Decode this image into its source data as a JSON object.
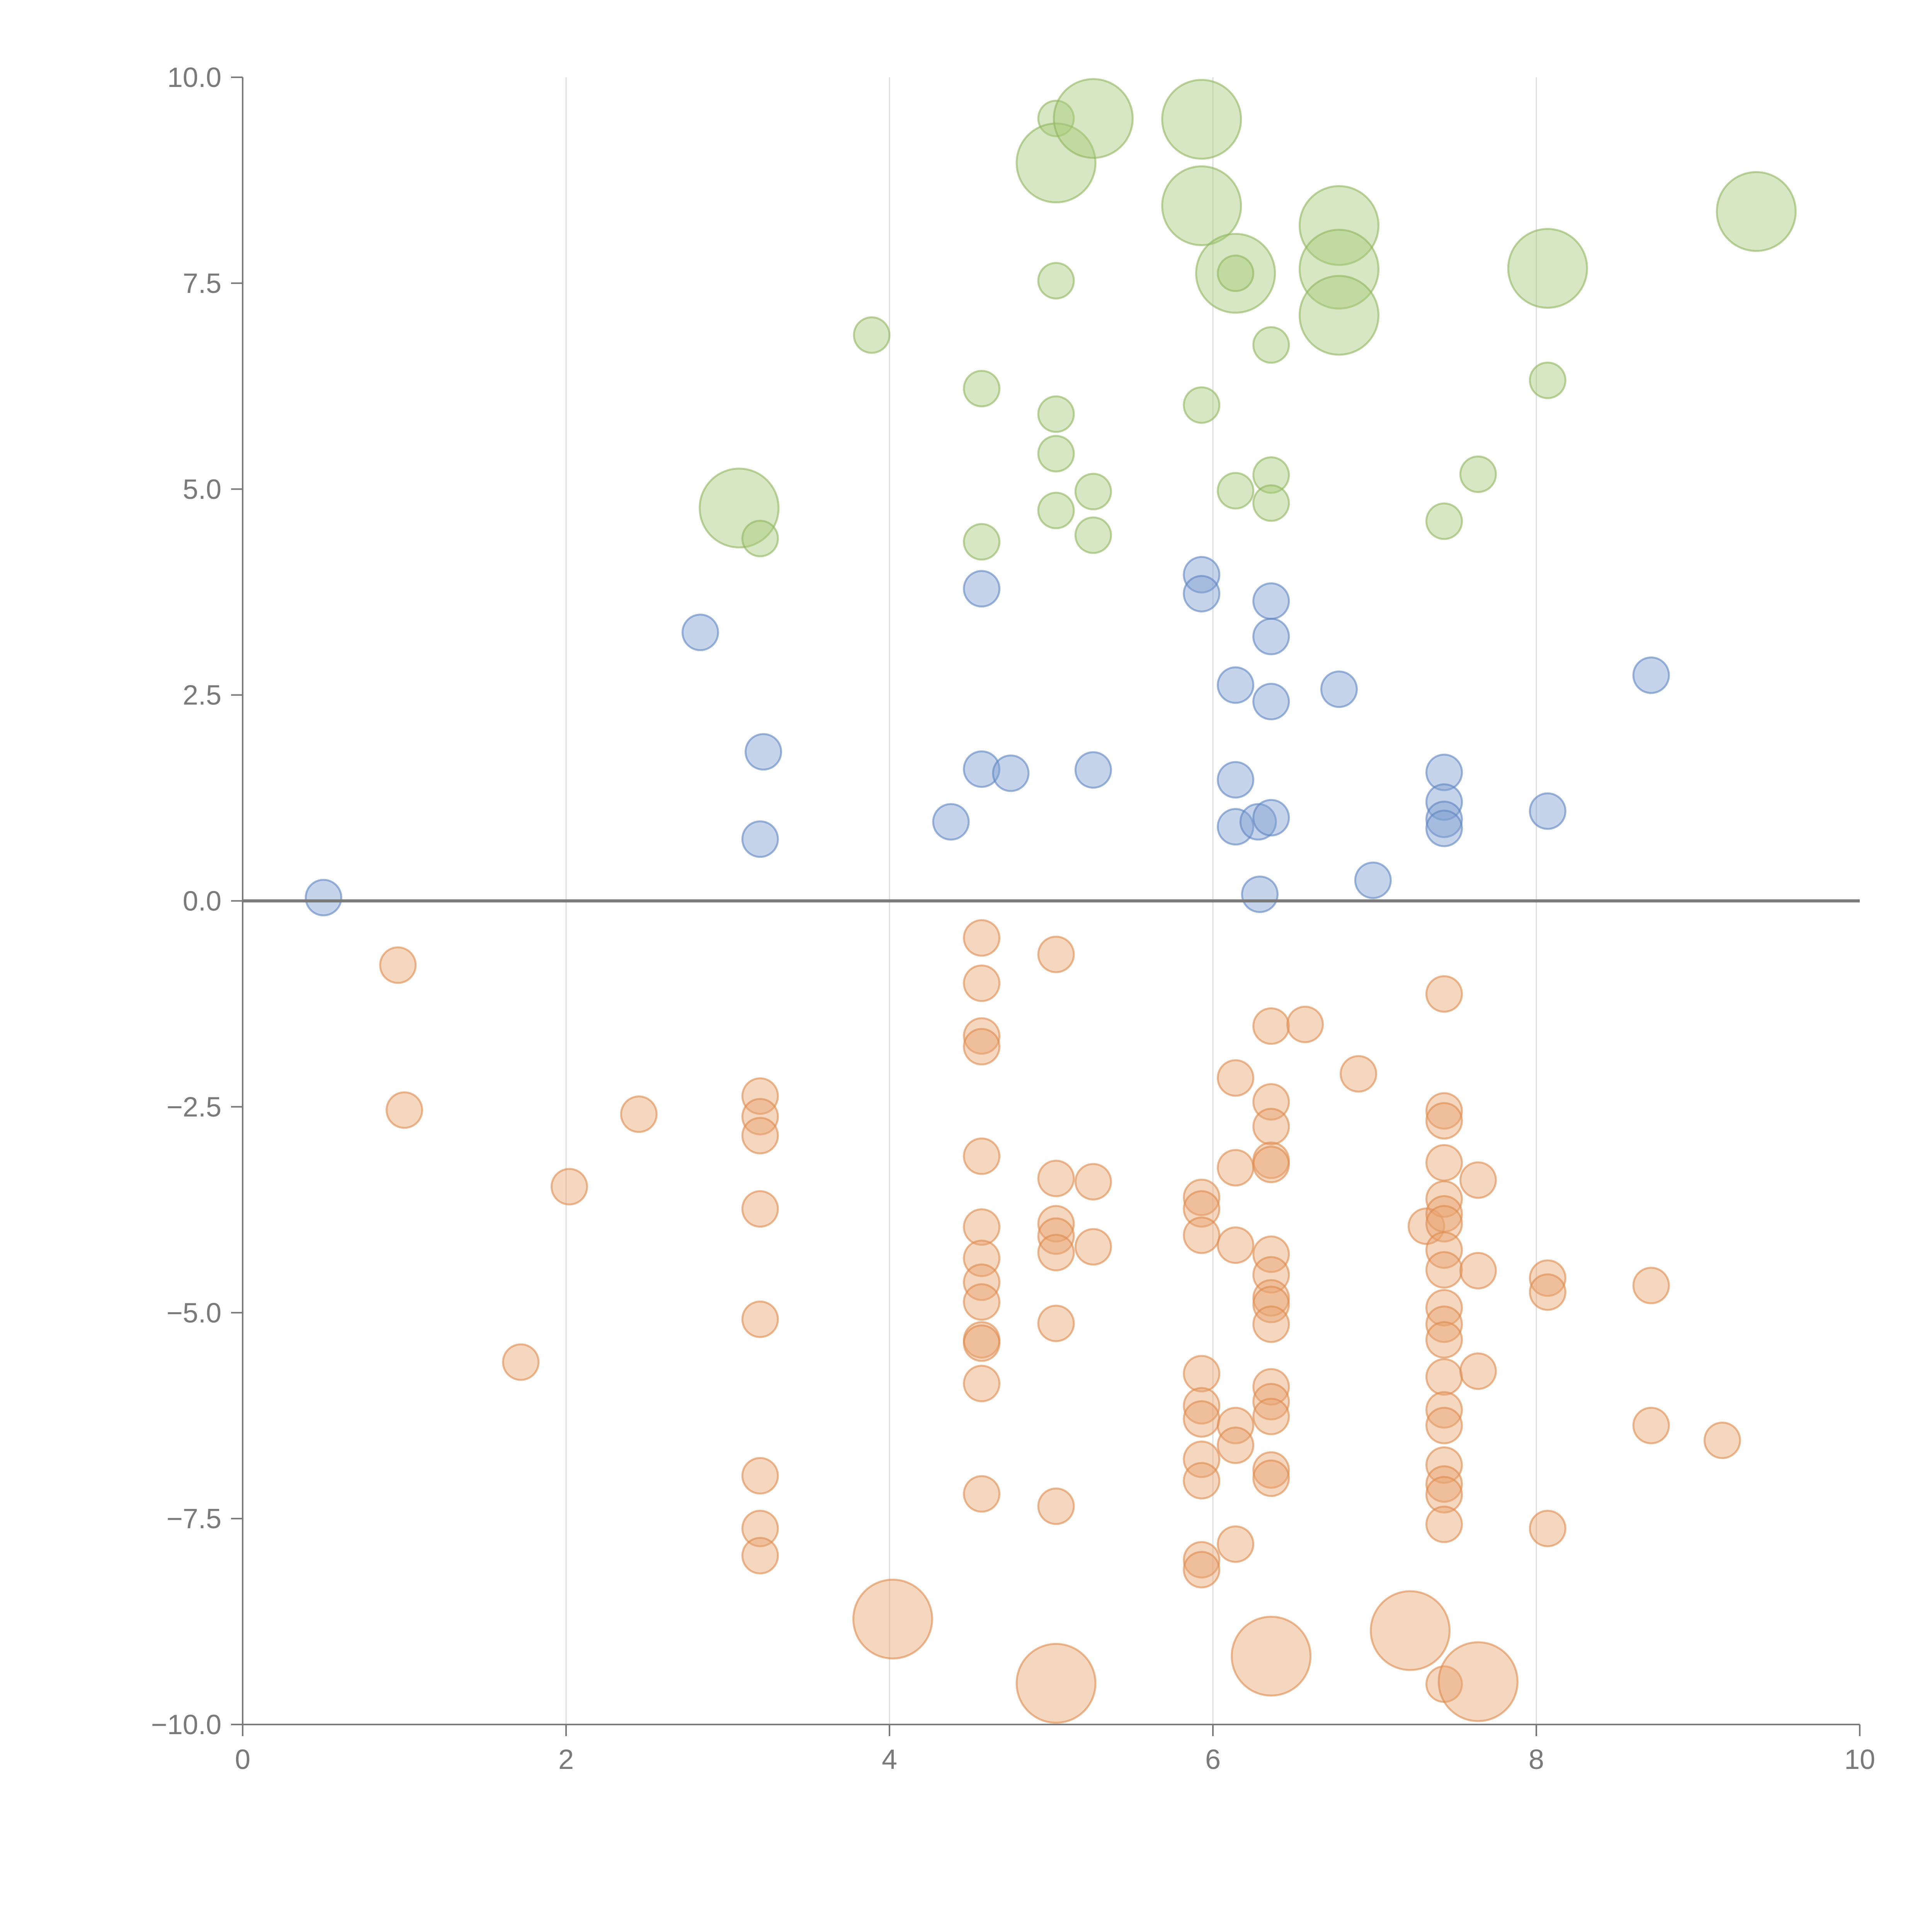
{
  "chart_data": {
    "type": "scatter",
    "title": "",
    "xlabel": "",
    "ylabel": "",
    "xlim": [
      0,
      10
    ],
    "ylim": [
      -10,
      10
    ],
    "x_ticks": [
      0,
      2,
      4,
      6,
      8,
      10
    ],
    "x_tick_labels": [
      "0",
      "2",
      "4",
      "6",
      "8",
      "10"
    ],
    "y_ticks": [
      10,
      7.5,
      5,
      2.5,
      0,
      -2.5,
      -5,
      -7.5,
      -10
    ],
    "y_tick_labels": [
      "10.0",
      "7.5",
      "5.0",
      "2.5",
      "0.0",
      "−2.5",
      "−5.0",
      "−7.5",
      "−10.0"
    ],
    "vertical_grid": true,
    "horizontal_grid": false,
    "zero_line": true,
    "legend": "none",
    "colors": {
      "green_fill": "#a9c97a",
      "green_stroke": "#8fb65f",
      "blue_fill": "#7f9fd0",
      "blue_stroke": "#5d84c2",
      "orange_fill": "#e8a470",
      "orange_stroke": "#dd8a4d",
      "axis": "#7a7a7a",
      "grid": "#dddddd"
    },
    "size_note_levels": [
      "small",
      "large"
    ],
    "series": [
      {
        "color": "green",
        "points": [
          {
            "x": 3.07,
            "y": 4.77,
            "size": "large"
          },
          {
            "x": 3.2,
            "y": 4.4,
            "size": "small"
          },
          {
            "x": 3.89,
            "y": 6.87,
            "size": "small"
          },
          {
            "x": 4.57,
            "y": 6.22,
            "size": "small"
          },
          {
            "x": 4.57,
            "y": 4.36,
            "size": "small"
          },
          {
            "x": 5.03,
            "y": 9.5,
            "size": "small"
          },
          {
            "x": 5.03,
            "y": 8.96,
            "size": "large"
          },
          {
            "x": 5.26,
            "y": 9.5,
            "size": "large"
          },
          {
            "x": 5.03,
            "y": 7.53,
            "size": "small"
          },
          {
            "x": 5.03,
            "y": 5.91,
            "size": "small"
          },
          {
            "x": 5.03,
            "y": 5.43,
            "size": "small"
          },
          {
            "x": 5.03,
            "y": 4.74,
            "size": "small"
          },
          {
            "x": 5.26,
            "y": 4.97,
            "size": "small"
          },
          {
            "x": 5.26,
            "y": 4.44,
            "size": "small"
          },
          {
            "x": 5.93,
            "y": 9.49,
            "size": "large"
          },
          {
            "x": 5.93,
            "y": 8.44,
            "size": "large"
          },
          {
            "x": 6.14,
            "y": 7.62,
            "size": "large"
          },
          {
            "x": 6.14,
            "y": 7.62,
            "size": "small"
          },
          {
            "x": 5.93,
            "y": 6.02,
            "size": "small"
          },
          {
            "x": 6.14,
            "y": 4.98,
            "size": "small"
          },
          {
            "x": 6.36,
            "y": 6.75,
            "size": "small"
          },
          {
            "x": 6.36,
            "y": 5.17,
            "size": "small"
          },
          {
            "x": 6.36,
            "y": 4.83,
            "size": "small"
          },
          {
            "x": 6.78,
            "y": 8.2,
            "size": "large"
          },
          {
            "x": 6.78,
            "y": 7.67,
            "size": "large"
          },
          {
            "x": 6.78,
            "y": 7.11,
            "size": "large"
          },
          {
            "x": 7.43,
            "y": 4.61,
            "size": "small"
          },
          {
            "x": 7.64,
            "y": 5.18,
            "size": "small"
          },
          {
            "x": 8.07,
            "y": 7.68,
            "size": "large"
          },
          {
            "x": 8.07,
            "y": 6.32,
            "size": "small"
          },
          {
            "x": 9.36,
            "y": 8.37,
            "size": "large"
          }
        ]
      },
      {
        "color": "blue",
        "points": [
          {
            "x": 0.5,
            "y": 0.04,
            "size": "small"
          },
          {
            "x": 2.83,
            "y": 3.26,
            "size": "small"
          },
          {
            "x": 3.22,
            "y": 1.81,
            "size": "small"
          },
          {
            "x": 3.2,
            "y": 0.75,
            "size": "small"
          },
          {
            "x": 4.38,
            "y": 0.96,
            "size": "small"
          },
          {
            "x": 4.57,
            "y": 3.79,
            "size": "small"
          },
          {
            "x": 4.57,
            "y": 1.6,
            "size": "small"
          },
          {
            "x": 4.75,
            "y": 1.55,
            "size": "small"
          },
          {
            "x": 5.26,
            "y": 1.59,
            "size": "small"
          },
          {
            "x": 5.93,
            "y": 3.96,
            "size": "small"
          },
          {
            "x": 5.93,
            "y": 3.73,
            "size": "small"
          },
          {
            "x": 6.14,
            "y": 2.62,
            "size": "small"
          },
          {
            "x": 6.14,
            "y": 1.47,
            "size": "small"
          },
          {
            "x": 6.14,
            "y": 0.9,
            "size": "small"
          },
          {
            "x": 6.28,
            "y": 0.96,
            "size": "small"
          },
          {
            "x": 6.29,
            "y": 0.08,
            "size": "small"
          },
          {
            "x": 6.36,
            "y": 3.64,
            "size": "small"
          },
          {
            "x": 6.36,
            "y": 3.21,
            "size": "small"
          },
          {
            "x": 6.36,
            "y": 2.42,
            "size": "small"
          },
          {
            "x": 6.36,
            "y": 1.01,
            "size": "small"
          },
          {
            "x": 6.78,
            "y": 2.57,
            "size": "small"
          },
          {
            "x": 6.99,
            "y": 0.25,
            "size": "small"
          },
          {
            "x": 7.43,
            "y": 1.56,
            "size": "small"
          },
          {
            "x": 7.43,
            "y": 1.2,
            "size": "small"
          },
          {
            "x": 7.43,
            "y": 0.99,
            "size": "small"
          },
          {
            "x": 7.43,
            "y": 0.88,
            "size": "small"
          },
          {
            "x": 8.07,
            "y": 1.09,
            "size": "small"
          },
          {
            "x": 8.71,
            "y": 2.74,
            "size": "small"
          }
        ]
      },
      {
        "color": "orange",
        "points": [
          {
            "x": 0.96,
            "y": -0.78,
            "size": "small"
          },
          {
            "x": 1.0,
            "y": -2.54,
            "size": "small"
          },
          {
            "x": 1.72,
            "y": -5.6,
            "size": "small"
          },
          {
            "x": 2.02,
            "y": -3.47,
            "size": "small"
          },
          {
            "x": 2.45,
            "y": -2.59,
            "size": "small"
          },
          {
            "x": 3.2,
            "y": -2.37,
            "size": "small"
          },
          {
            "x": 3.2,
            "y": -2.62,
            "size": "small"
          },
          {
            "x": 3.2,
            "y": -2.85,
            "size": "small"
          },
          {
            "x": 3.2,
            "y": -3.74,
            "size": "small"
          },
          {
            "x": 3.2,
            "y": -5.08,
            "size": "small"
          },
          {
            "x": 3.2,
            "y": -6.98,
            "size": "small"
          },
          {
            "x": 3.2,
            "y": -7.62,
            "size": "small"
          },
          {
            "x": 3.2,
            "y": -7.95,
            "size": "small"
          },
          {
            "x": 4.02,
            "y": -8.72,
            "size": "large"
          },
          {
            "x": 4.57,
            "y": -0.45,
            "size": "small"
          },
          {
            "x": 4.57,
            "y": -1.0,
            "size": "small"
          },
          {
            "x": 4.57,
            "y": -1.64,
            "size": "small"
          },
          {
            "x": 4.57,
            "y": -1.77,
            "size": "small"
          },
          {
            "x": 4.57,
            "y": -3.1,
            "size": "small"
          },
          {
            "x": 4.57,
            "y": -3.96,
            "size": "small"
          },
          {
            "x": 4.57,
            "y": -4.34,
            "size": "small"
          },
          {
            "x": 4.57,
            "y": -4.63,
            "size": "small"
          },
          {
            "x": 4.57,
            "y": -4.87,
            "size": "small"
          },
          {
            "x": 4.57,
            "y": -5.33,
            "size": "small"
          },
          {
            "x": 4.57,
            "y": -5.37,
            "size": "small"
          },
          {
            "x": 4.57,
            "y": -5.86,
            "size": "small"
          },
          {
            "x": 4.57,
            "y": -7.2,
            "size": "small"
          },
          {
            "x": 5.03,
            "y": -0.65,
            "size": "small"
          },
          {
            "x": 5.03,
            "y": -3.37,
            "size": "small"
          },
          {
            "x": 5.03,
            "y": -3.92,
            "size": "small"
          },
          {
            "x": 5.03,
            "y": -4.07,
            "size": "small"
          },
          {
            "x": 5.03,
            "y": -4.27,
            "size": "small"
          },
          {
            "x": 5.03,
            "y": -5.13,
            "size": "small"
          },
          {
            "x": 5.03,
            "y": -7.35,
            "size": "small"
          },
          {
            "x": 5.03,
            "y": -9.5,
            "size": "large"
          },
          {
            "x": 5.26,
            "y": -3.41,
            "size": "small"
          },
          {
            "x": 5.26,
            "y": -4.2,
            "size": "small"
          },
          {
            "x": 5.93,
            "y": -3.6,
            "size": "small"
          },
          {
            "x": 5.93,
            "y": -3.74,
            "size": "small"
          },
          {
            "x": 5.93,
            "y": -4.06,
            "size": "small"
          },
          {
            "x": 5.93,
            "y": -5.74,
            "size": "small"
          },
          {
            "x": 5.93,
            "y": -6.13,
            "size": "small"
          },
          {
            "x": 5.93,
            "y": -6.29,
            "size": "small"
          },
          {
            "x": 5.93,
            "y": -6.78,
            "size": "small"
          },
          {
            "x": 5.93,
            "y": -7.04,
            "size": "small"
          },
          {
            "x": 5.93,
            "y": -8.0,
            "size": "small"
          },
          {
            "x": 5.93,
            "y": -8.12,
            "size": "small"
          },
          {
            "x": 6.14,
            "y": -2.15,
            "size": "small"
          },
          {
            "x": 6.14,
            "y": -3.24,
            "size": "small"
          },
          {
            "x": 6.14,
            "y": -4.18,
            "size": "small"
          },
          {
            "x": 6.14,
            "y": -6.37,
            "size": "small"
          },
          {
            "x": 6.14,
            "y": -6.61,
            "size": "small"
          },
          {
            "x": 6.14,
            "y": -7.81,
            "size": "small"
          },
          {
            "x": 6.36,
            "y": -1.52,
            "size": "small"
          },
          {
            "x": 6.36,
            "y": -2.44,
            "size": "small"
          },
          {
            "x": 6.36,
            "y": -2.74,
            "size": "small"
          },
          {
            "x": 6.36,
            "y": -3.15,
            "size": "small"
          },
          {
            "x": 6.36,
            "y": -3.2,
            "size": "small"
          },
          {
            "x": 6.36,
            "y": -4.29,
            "size": "small"
          },
          {
            "x": 6.36,
            "y": -4.54,
            "size": "small"
          },
          {
            "x": 6.36,
            "y": -4.82,
            "size": "small"
          },
          {
            "x": 6.36,
            "y": -4.9,
            "size": "small"
          },
          {
            "x": 6.36,
            "y": -5.14,
            "size": "small"
          },
          {
            "x": 6.36,
            "y": -5.9,
            "size": "small"
          },
          {
            "x": 6.36,
            "y": -6.08,
            "size": "small"
          },
          {
            "x": 6.36,
            "y": -6.26,
            "size": "small"
          },
          {
            "x": 6.36,
            "y": -6.91,
            "size": "small"
          },
          {
            "x": 6.36,
            "y": -7.01,
            "size": "small"
          },
          {
            "x": 6.36,
            "y": -9.17,
            "size": "large"
          },
          {
            "x": 6.57,
            "y": -1.5,
            "size": "small"
          },
          {
            "x": 6.9,
            "y": -2.1,
            "size": "small"
          },
          {
            "x": 7.22,
            "y": -8.86,
            "size": "large"
          },
          {
            "x": 7.32,
            "y": -3.95,
            "size": "small"
          },
          {
            "x": 7.43,
            "y": -1.13,
            "size": "small"
          },
          {
            "x": 7.43,
            "y": -2.55,
            "size": "small"
          },
          {
            "x": 7.43,
            "y": -2.67,
            "size": "small"
          },
          {
            "x": 7.43,
            "y": -3.18,
            "size": "small"
          },
          {
            "x": 7.43,
            "y": -3.62,
            "size": "small"
          },
          {
            "x": 7.43,
            "y": -3.8,
            "size": "small"
          },
          {
            "x": 7.43,
            "y": -3.92,
            "size": "small"
          },
          {
            "x": 7.43,
            "y": -4.24,
            "size": "small"
          },
          {
            "x": 7.43,
            "y": -4.48,
            "size": "small"
          },
          {
            "x": 7.43,
            "y": -4.94,
            "size": "small"
          },
          {
            "x": 7.43,
            "y": -5.14,
            "size": "small"
          },
          {
            "x": 7.43,
            "y": -5.33,
            "size": "small"
          },
          {
            "x": 7.43,
            "y": -5.78,
            "size": "small"
          },
          {
            "x": 7.43,
            "y": -6.18,
            "size": "small"
          },
          {
            "x": 7.43,
            "y": -6.37,
            "size": "small"
          },
          {
            "x": 7.43,
            "y": -6.85,
            "size": "small"
          },
          {
            "x": 7.43,
            "y": -7.08,
            "size": "small"
          },
          {
            "x": 7.43,
            "y": -7.21,
            "size": "small"
          },
          {
            "x": 7.43,
            "y": -7.57,
            "size": "small"
          },
          {
            "x": 7.43,
            "y": -9.51,
            "size": "small"
          },
          {
            "x": 7.64,
            "y": -3.39,
            "size": "small"
          },
          {
            "x": 7.64,
            "y": -4.49,
            "size": "small"
          },
          {
            "x": 7.64,
            "y": -5.71,
            "size": "small"
          },
          {
            "x": 7.64,
            "y": -9.48,
            "size": "large"
          },
          {
            "x": 8.07,
            "y": -4.58,
            "size": "small"
          },
          {
            "x": 8.07,
            "y": -4.75,
            "size": "small"
          },
          {
            "x": 8.07,
            "y": -7.62,
            "size": "small"
          },
          {
            "x": 8.71,
            "y": -4.67,
            "size": "small"
          },
          {
            "x": 8.71,
            "y": -6.37,
            "size": "small"
          },
          {
            "x": 9.15,
            "y": -6.55,
            "size": "small"
          }
        ]
      }
    ]
  }
}
